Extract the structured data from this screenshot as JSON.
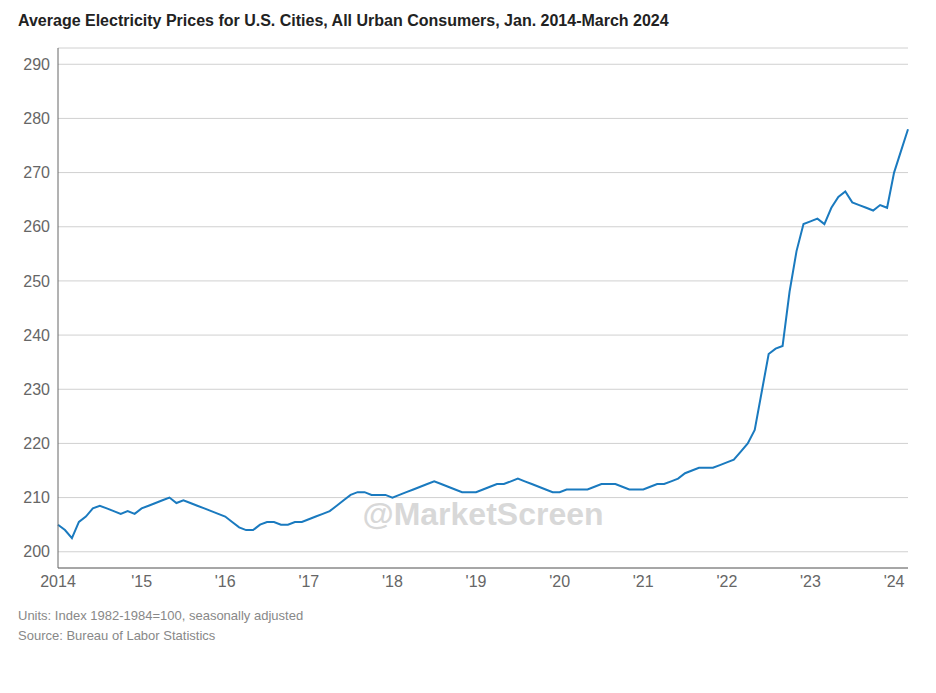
{
  "chart_data": {
    "type": "line",
    "title": "Average Electricity Prices for U.S. Cities, All Urban Consumers, Jan. 2014-March 2024",
    "subtitle": [
      "Units: Index 1982-1984=100, seasonally adjusted",
      "Source: Bureau of Labor Statistics"
    ],
    "annotations": [
      "@MarketScreen"
    ],
    "color": "#1a7abf",
    "grid": true,
    "ylim": [
      197,
      293
    ],
    "yticks": [
      200,
      210,
      220,
      230,
      240,
      250,
      260,
      270,
      280,
      290
    ],
    "categories": [
      "2014",
      null,
      null,
      null,
      null,
      null,
      null,
      null,
      null,
      null,
      null,
      null,
      "'15",
      null,
      null,
      null,
      null,
      null,
      null,
      null,
      null,
      null,
      null,
      null,
      "'16",
      null,
      null,
      null,
      null,
      null,
      null,
      null,
      null,
      null,
      null,
      null,
      "'17",
      null,
      null,
      null,
      null,
      null,
      null,
      null,
      null,
      null,
      null,
      null,
      "'18",
      null,
      null,
      null,
      null,
      null,
      null,
      null,
      null,
      null,
      null,
      null,
      "'19",
      null,
      null,
      null,
      null,
      null,
      null,
      null,
      null,
      null,
      null,
      null,
      "'20",
      null,
      null,
      null,
      null,
      null,
      null,
      null,
      null,
      null,
      null,
      null,
      "'21",
      null,
      null,
      null,
      null,
      null,
      null,
      null,
      null,
      null,
      null,
      null,
      "'22",
      null,
      null,
      null,
      null,
      null,
      null,
      null,
      null,
      null,
      null,
      null,
      "'23",
      null,
      null,
      null,
      null,
      null,
      null,
      null,
      null,
      null,
      null,
      null,
      "'24",
      null,
      null
    ],
    "values": [
      205.0,
      204.0,
      202.5,
      205.5,
      206.5,
      208.0,
      208.5,
      208.0,
      207.5,
      207.0,
      207.5,
      207.0,
      208.0,
      208.5,
      209.0,
      209.5,
      210.0,
      209.0,
      209.5,
      209.0,
      208.5,
      208.0,
      207.5,
      207.0,
      206.5,
      205.5,
      204.5,
      204.0,
      204.0,
      205.0,
      205.5,
      205.5,
      205.0,
      205.0,
      205.5,
      205.5,
      206.0,
      206.5,
      207.0,
      207.5,
      208.5,
      209.5,
      210.5,
      211.0,
      211.0,
      210.5,
      210.5,
      210.5,
      210.0,
      210.5,
      211.0,
      211.5,
      212.0,
      212.5,
      213.0,
      212.5,
      212.0,
      211.5,
      211.0,
      211.0,
      211.0,
      211.5,
      212.0,
      212.5,
      212.5,
      213.0,
      213.5,
      213.0,
      212.5,
      212.0,
      211.5,
      211.0,
      211.0,
      211.5,
      211.5,
      211.5,
      211.5,
      212.0,
      212.5,
      212.5,
      212.5,
      212.0,
      211.5,
      211.5,
      211.5,
      212.0,
      212.5,
      212.5,
      213.0,
      213.5,
      214.5,
      215.0,
      215.5,
      215.5,
      215.5,
      216.0,
      216.5,
      217.0,
      218.5,
      220.0,
      222.5,
      229.5,
      236.5,
      237.5,
      238.0,
      248.0,
      255.5,
      260.5,
      261.0,
      261.5,
      260.5,
      263.5,
      265.5,
      266.5,
      264.5,
      264.0,
      263.5,
      263.0,
      264.0,
      263.5,
      270.0,
      274.0,
      278.0
    ]
  }
}
